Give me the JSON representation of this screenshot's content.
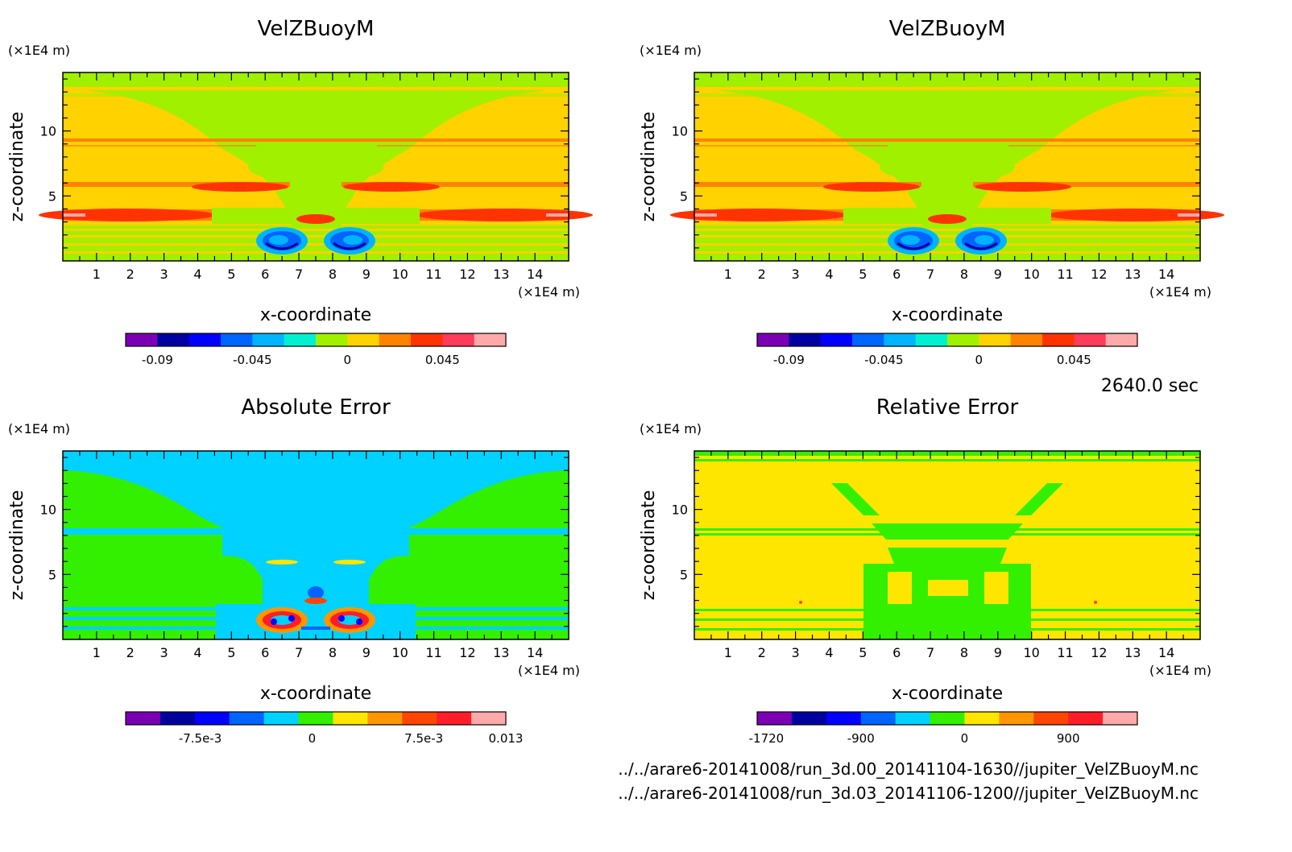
{
  "time_label": "2640.0 sec",
  "files": [
    "../../arare6-20141008/run_3d.00_20141104-1630//jupiter_VelZBuoyM.nc",
    "../../arare6-20141008/run_3d.03_20141106-1200//jupiter_VelZBuoyM.nc"
  ],
  "chart_data": [
    {
      "type": "heatmap",
      "title": "VelZBuoyM",
      "xlabel": "x-coordinate",
      "ylabel": "z-coordinate",
      "x_unit": "(×1E4 m)",
      "y_unit": "(×1E4 m)",
      "xlim": [
        0,
        15
      ],
      "ylim": [
        0,
        14.5
      ],
      "x_ticks": [
        "1",
        "2",
        "3",
        "4",
        "5",
        "6",
        "7",
        "8",
        "9",
        "10",
        "11",
        "12",
        "13",
        "14"
      ],
      "y_ticks": [
        "5",
        "10"
      ],
      "colorbar": {
        "colors": [
          "#7b00b4",
          "#0000a0",
          "#0000ff",
          "#0064ff",
          "#00b4ff",
          "#00f0d2",
          "#a0f000",
          "#ffd200",
          "#ff8200",
          "#ff3200",
          "#ff3c5a",
          "#ffaaaa"
        ],
        "ticks": [
          {
            "label": "-0.09",
            "value": -0.09
          },
          {
            "label": "-0.045",
            "value": -0.045
          },
          {
            "label": "0",
            "value": 0
          },
          {
            "label": "0.045",
            "value": 0.045
          }
        ],
        "range": [
          -0.105,
          0.075
        ]
      }
    },
    {
      "type": "heatmap",
      "title": "VelZBuoyM",
      "xlabel": "x-coordinate",
      "ylabel": "z-coordinate",
      "x_unit": "(×1E4 m)",
      "y_unit": "(×1E4 m)",
      "xlim": [
        0,
        15
      ],
      "ylim": [
        0,
        14.5
      ],
      "x_ticks": [
        "1",
        "2",
        "3",
        "4",
        "5",
        "6",
        "7",
        "8",
        "9",
        "10",
        "11",
        "12",
        "13",
        "14"
      ],
      "y_ticks": [
        "5",
        "10"
      ],
      "colorbar": {
        "colors": [
          "#7b00b4",
          "#0000a0",
          "#0000ff",
          "#0064ff",
          "#00b4ff",
          "#00f0d2",
          "#a0f000",
          "#ffd200",
          "#ff8200",
          "#ff3200",
          "#ff3c5a",
          "#ffaaaa"
        ],
        "ticks": [
          {
            "label": "-0.09",
            "value": -0.09
          },
          {
            "label": "-0.045",
            "value": -0.045
          },
          {
            "label": "0",
            "value": 0
          },
          {
            "label": "0.045",
            "value": 0.045
          }
        ],
        "range": [
          -0.105,
          0.075
        ]
      }
    },
    {
      "type": "heatmap",
      "title": "Absolute Error",
      "xlabel": "x-coordinate",
      "ylabel": "z-coordinate",
      "x_unit": "(×1E4 m)",
      "y_unit": "(×1E4 m)",
      "xlim": [
        0,
        15
      ],
      "ylim": [
        0,
        14.5
      ],
      "x_ticks": [
        "1",
        "2",
        "3",
        "4",
        "5",
        "6",
        "7",
        "8",
        "9",
        "10",
        "11",
        "12",
        "13",
        "14"
      ],
      "y_ticks": [
        "5",
        "10"
      ],
      "colorbar": {
        "colors": [
          "#7b00b4",
          "#0000a0",
          "#0000ff",
          "#0064ff",
          "#00d2ff",
          "#32f000",
          "#ffe600",
          "#ff9600",
          "#ff4600",
          "#ff1e28",
          "#ffaaaa"
        ],
        "ticks": [
          {
            "label": "-7.5e-3",
            "value": -0.0075
          },
          {
            "label": "0",
            "value": 0
          },
          {
            "label": "7.5e-3",
            "value": 0.0075
          },
          {
            "label": "0.013",
            "value": 0.013
          }
        ],
        "range": [
          -0.0125,
          0.013
        ]
      }
    },
    {
      "type": "heatmap",
      "title": "Relative Error",
      "xlabel": "x-coordinate",
      "ylabel": "z-coordinate",
      "x_unit": "(×1E4 m)",
      "y_unit": "(×1E4 m)",
      "xlim": [
        0,
        15
      ],
      "ylim": [
        0,
        14.5
      ],
      "x_ticks": [
        "1",
        "2",
        "3",
        "4",
        "5",
        "6",
        "7",
        "8",
        "9",
        "10",
        "11",
        "12",
        "13",
        "14"
      ],
      "y_ticks": [
        "5",
        "10"
      ],
      "colorbar": {
        "colors": [
          "#7b00b4",
          "#0000a0",
          "#0000ff",
          "#0064ff",
          "#00d2ff",
          "#32f000",
          "#ffe600",
          "#ff9600",
          "#ff4600",
          "#ff1e28",
          "#ffaaaa"
        ],
        "ticks": [
          {
            "label": "-1720",
            "value": -1720
          },
          {
            "label": "-900",
            "value": -900
          },
          {
            "label": "0",
            "value": 0
          },
          {
            "label": "900",
            "value": 900
          }
        ],
        "range": [
          -1800,
          1500
        ]
      }
    }
  ]
}
